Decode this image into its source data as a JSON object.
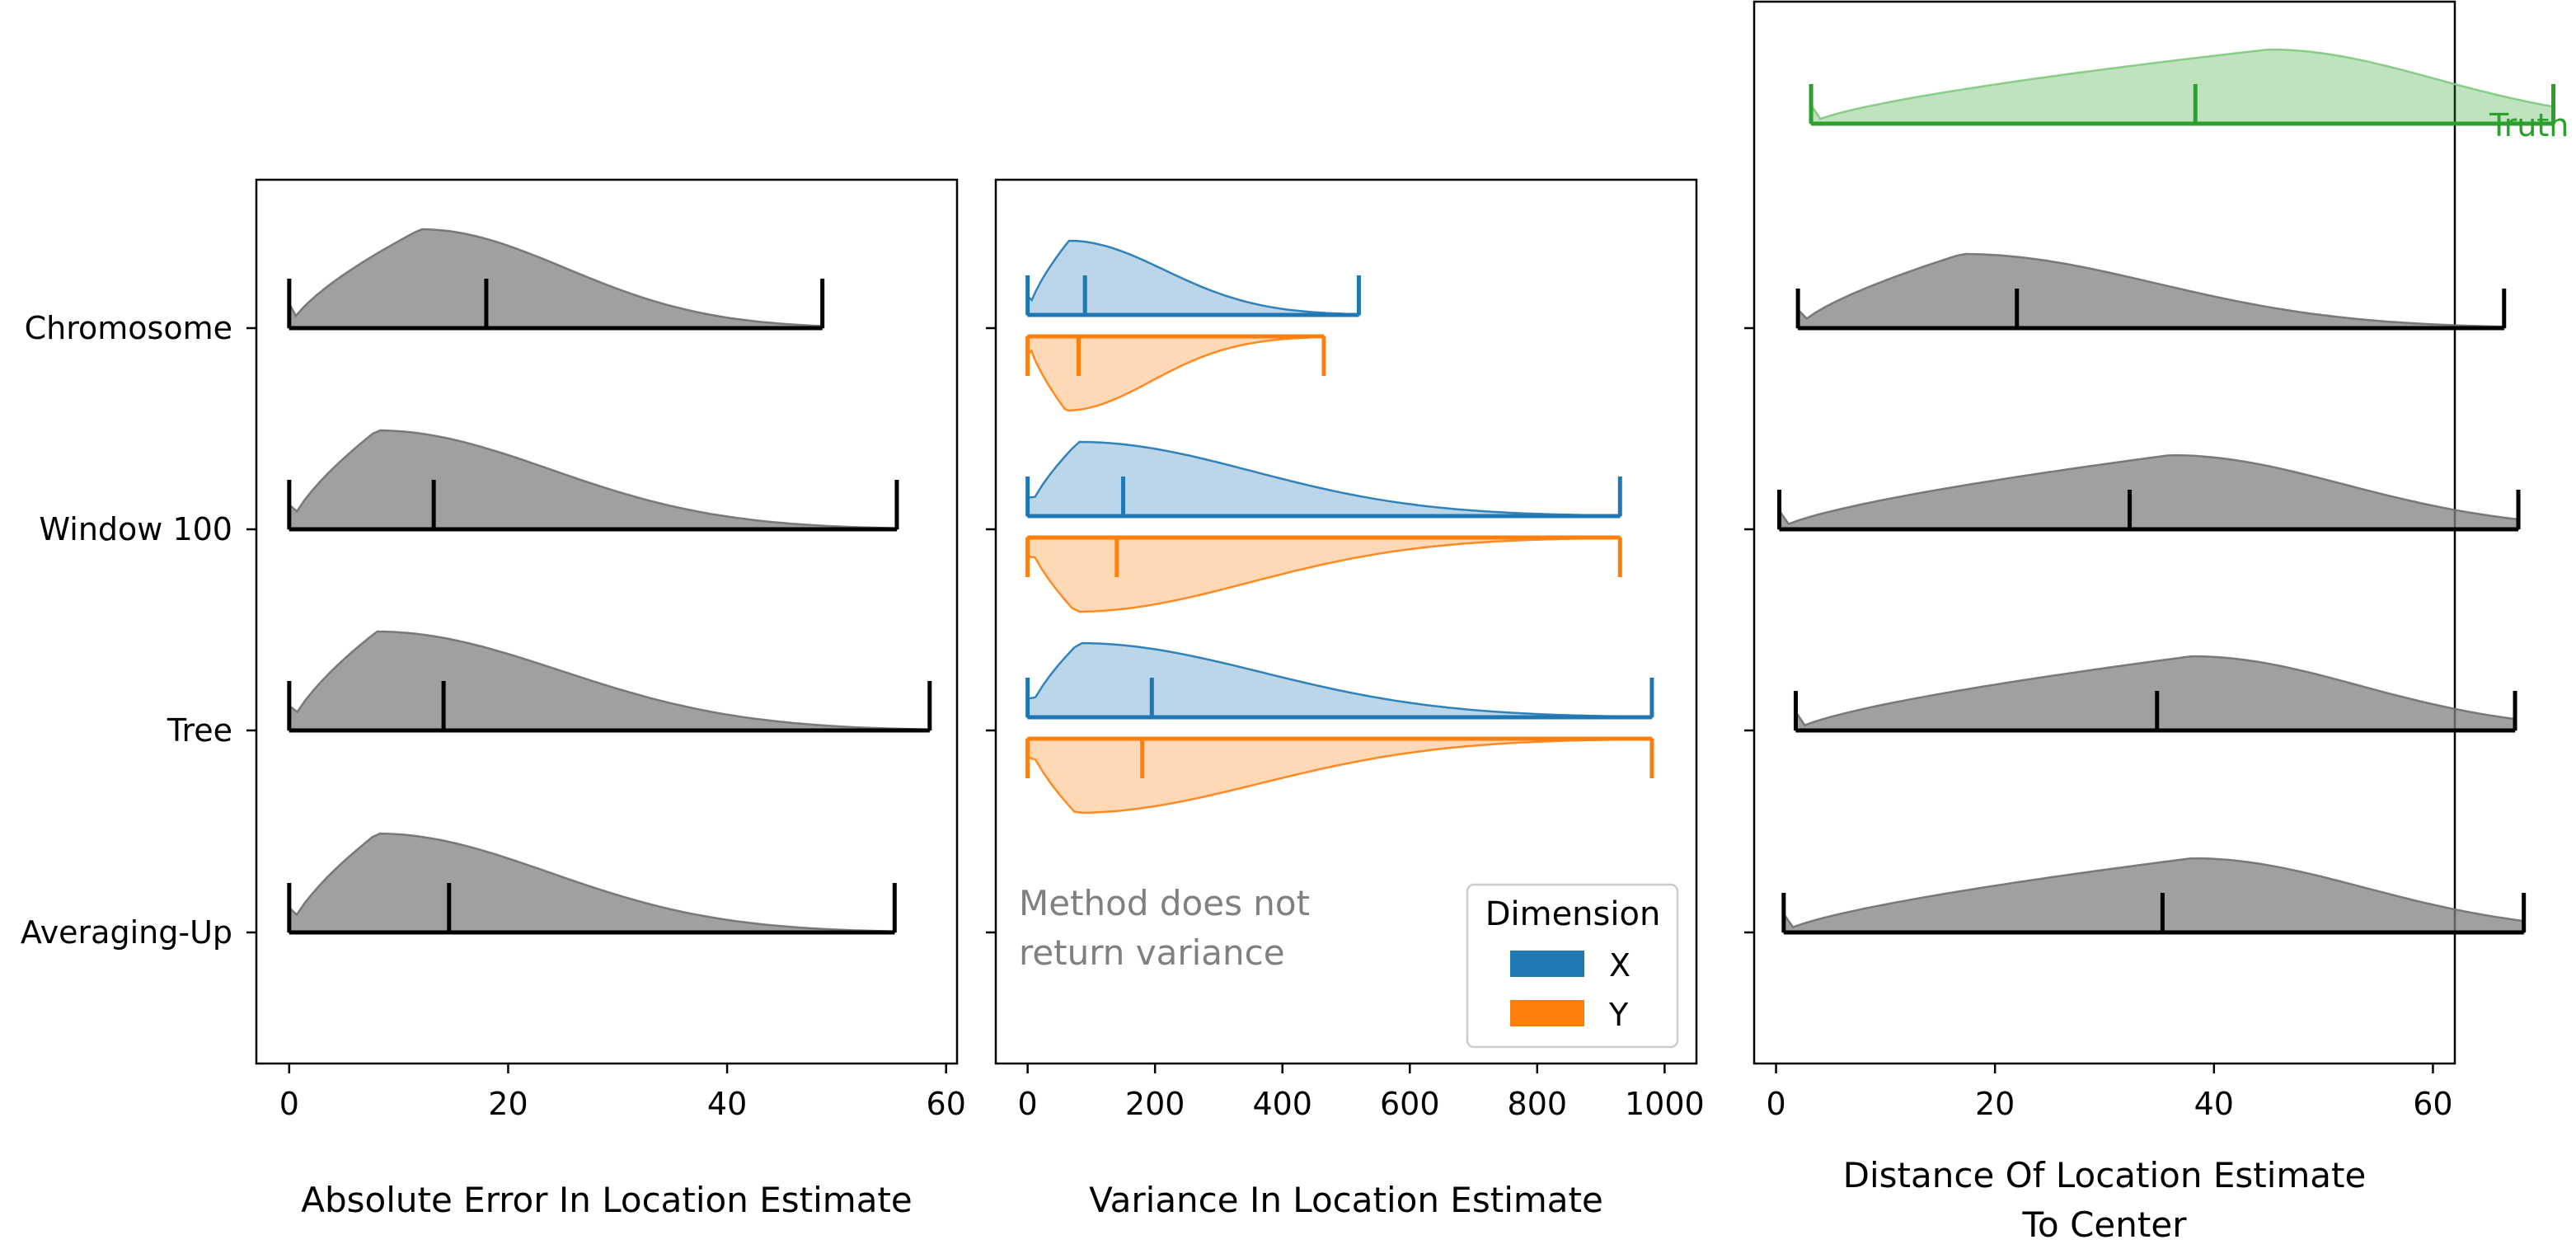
{
  "chart_data": [
    {
      "type": "violin",
      "xlabel": "Absolute Error In Location Estimate",
      "xlim": [
        -3,
        61
      ],
      "xticks": [
        0,
        20,
        40,
        60
      ],
      "categories": [
        "Chromosome",
        "Window 100",
        "Tree",
        "Averaging-Up"
      ],
      "grid": false,
      "color": "#808080",
      "series": [
        {
          "category": "Chromosome",
          "min": 0,
          "median": 18,
          "max": 48.7,
          "density_peak_at": 12
        },
        {
          "category": "Window 100",
          "min": 0,
          "median": 13.2,
          "max": 55.5,
          "density_peak_at": 8
        },
        {
          "category": "Tree",
          "min": 0,
          "median": 14.1,
          "max": 58.5,
          "density_peak_at": 8
        },
        {
          "category": "Averaging-Up",
          "min": 0,
          "median": 14.6,
          "max": 55.3,
          "density_peak_at": 8
        }
      ]
    },
    {
      "type": "violin",
      "xlabel": "Variance In Location Estimate",
      "xlim": [
        -50,
        1050
      ],
      "xticks": [
        0,
        200,
        400,
        600,
        800,
        1000
      ],
      "categories": [
        "Chromosome",
        "Window 100",
        "Tree",
        "Averaging-Up"
      ],
      "grid": false,
      "legend": {
        "title": "Dimension",
        "position": "lower-right",
        "entries": [
          {
            "name": "X",
            "color": "#1f77b4"
          },
          {
            "name": "Y",
            "color": "#ff7f0e"
          }
        ]
      },
      "annotation": "Method does not return variance",
      "series": [
        {
          "category": "Chromosome",
          "dimension": "X",
          "min": 0,
          "median": 90,
          "max": 520,
          "density_peak_at": 65
        },
        {
          "category": "Chromosome",
          "dimension": "Y",
          "min": 0,
          "median": 80,
          "max": 465,
          "density_peak_at": 60
        },
        {
          "category": "Window 100",
          "dimension": "X",
          "min": 0,
          "median": 150,
          "max": 930,
          "density_peak_at": 80
        },
        {
          "category": "Window 100",
          "dimension": "Y",
          "min": 0,
          "median": 140,
          "max": 930,
          "density_peak_at": 75
        },
        {
          "category": "Tree",
          "dimension": "X",
          "min": 0,
          "median": 195,
          "max": 980,
          "density_peak_at": 80
        },
        {
          "category": "Tree",
          "dimension": "Y",
          "min": 0,
          "median": 180,
          "max": 980,
          "density_peak_at": 75
        }
      ]
    },
    {
      "type": "violin",
      "xlabel": "Distance Of Location Estimate To Center",
      "xlim": [
        -2,
        62
      ],
      "xticks": [
        0,
        20,
        40,
        60
      ],
      "categories": [
        "Truth",
        "Chromosome",
        "Window 100",
        "Tree",
        "Averaging-Up"
      ],
      "grid": false,
      "series": [
        {
          "category": "Truth",
          "min": 3.2,
          "median": 38.3,
          "max": 71,
          "density_peak_at": 45,
          "color": "#2ca02c"
        },
        {
          "category": "Chromosome",
          "min": 2,
          "median": 22,
          "max": 66.5,
          "density_peak_at": 17,
          "color": "#808080"
        },
        {
          "category": "Window 100",
          "min": 0.3,
          "median": 32.3,
          "max": 67.8,
          "density_peak_at": 36,
          "color": "#808080"
        },
        {
          "category": "Tree",
          "min": 1.8,
          "median": 34.8,
          "max": 67.5,
          "density_peak_at": 38,
          "color": "#808080"
        },
        {
          "category": "Averaging-Up",
          "min": 0.7,
          "median": 35.3,
          "max": 68.3,
          "density_peak_at": 38,
          "color": "#808080"
        }
      ]
    }
  ]
}
